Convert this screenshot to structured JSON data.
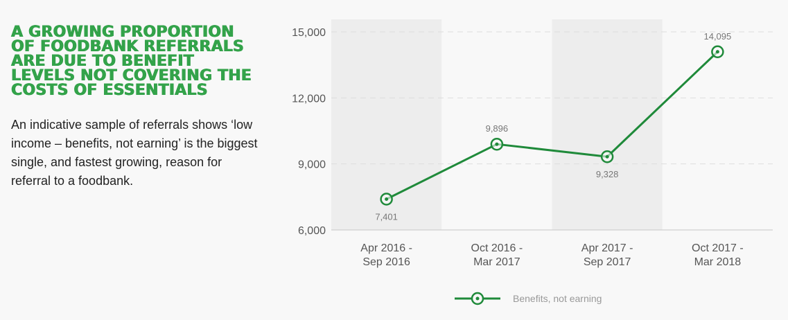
{
  "headline": "A growing proportion of foodbank referrals are due to benefit levels not covering the costs of essentials",
  "body_text": "An indicative sample of referrals shows ‘low income – benefits, not earning’ is the biggest single, and fastest growing, reason for referral to a foodbank.",
  "colors": {
    "accent": "#1f8a3a",
    "headline": "#33a34a",
    "band": "#ededed"
  },
  "chart_data": {
    "type": "line",
    "categories": [
      [
        "Apr 2016 -",
        "Sep 2016"
      ],
      [
        "Oct 2016 -",
        "Mar 2017"
      ],
      [
        "Apr 2017 -",
        "Sep 2017"
      ],
      [
        "Oct 2017 -",
        "Mar 2018"
      ]
    ],
    "series": [
      {
        "name": "Benefits, not earning",
        "values": [
          7401,
          9896,
          9328,
          14095
        ],
        "labels": [
          "7,401",
          "9,896",
          "9,328",
          "14,095"
        ],
        "label_position": [
          "below",
          "above",
          "below",
          "above"
        ]
      }
    ],
    "yticks": [
      6000,
      9000,
      12000,
      15000
    ],
    "ytick_labels": [
      "6,000",
      "9,000",
      "12,000",
      "15,000"
    ],
    "ylim": [
      6000,
      15500
    ],
    "grid": "dashed horizontal",
    "alternating_bands": true,
    "legend": "bottom-center"
  }
}
